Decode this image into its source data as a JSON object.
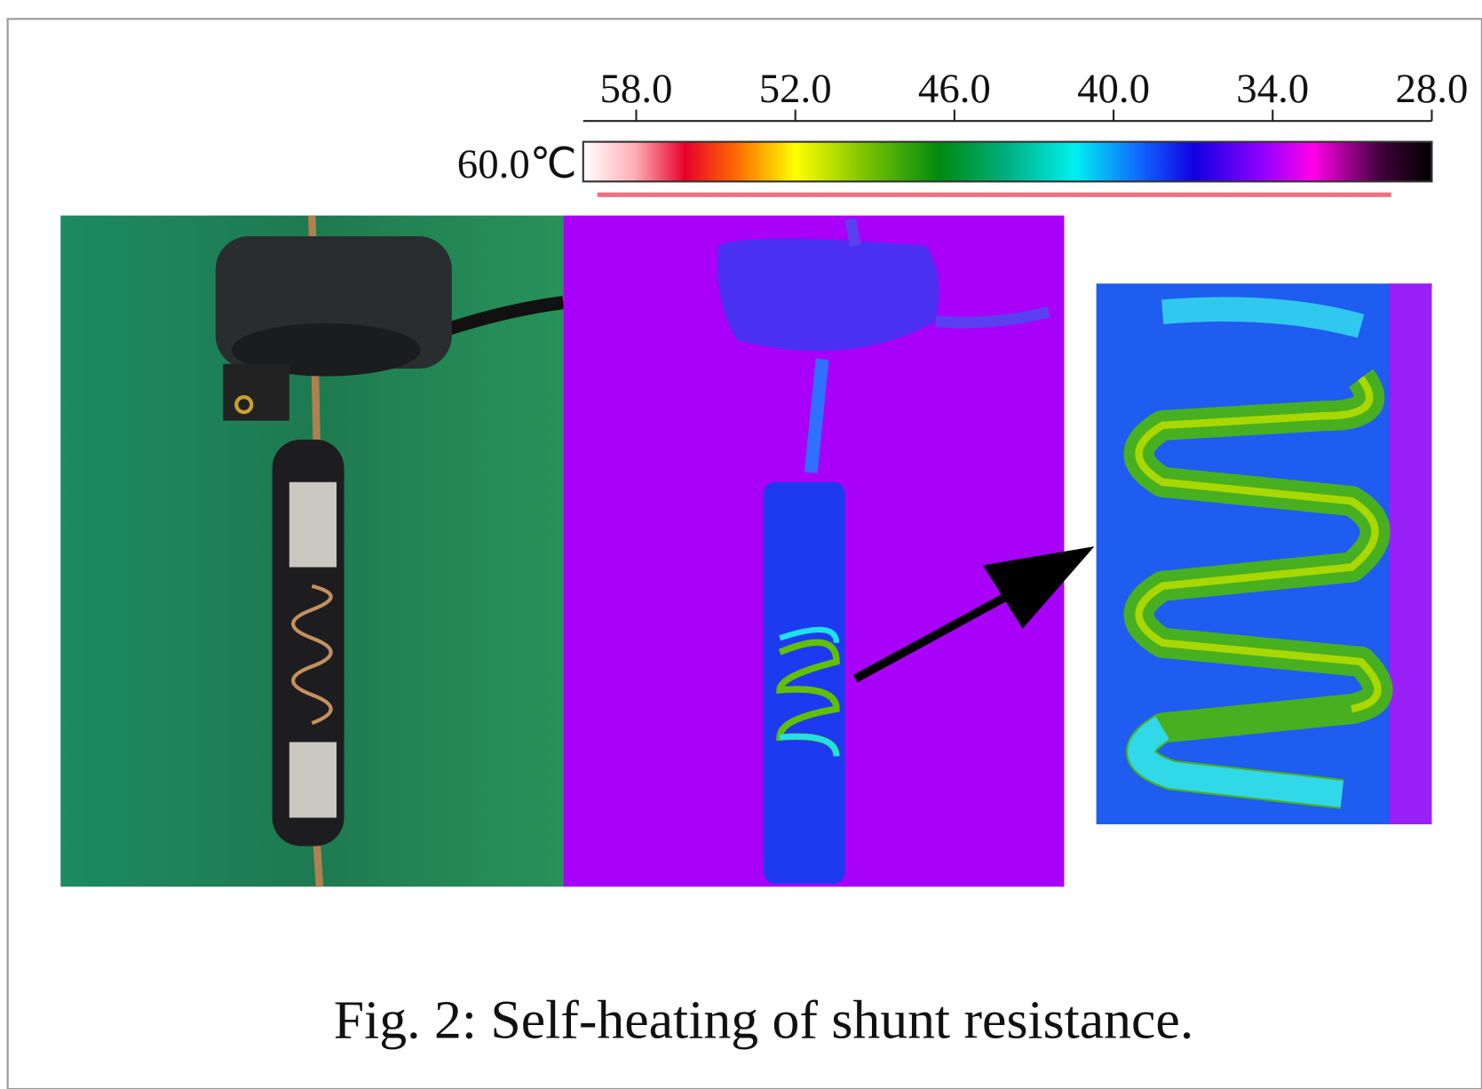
{
  "figure": {
    "colorbar": {
      "max_label": "60.0℃",
      "lim": [
        60,
        28
      ],
      "ticks": [
        {
          "value": 58,
          "label": "58.0"
        },
        {
          "value": 52,
          "label": "52.0"
        },
        {
          "value": 46,
          "label": "46.0"
        },
        {
          "value": 40,
          "label": "40.0"
        },
        {
          "value": 34,
          "label": "34.0"
        },
        {
          "value": 28,
          "label": "28.0"
        }
      ]
    },
    "caption": "Fig.  2: Self-heating of shunt resistance."
  }
}
